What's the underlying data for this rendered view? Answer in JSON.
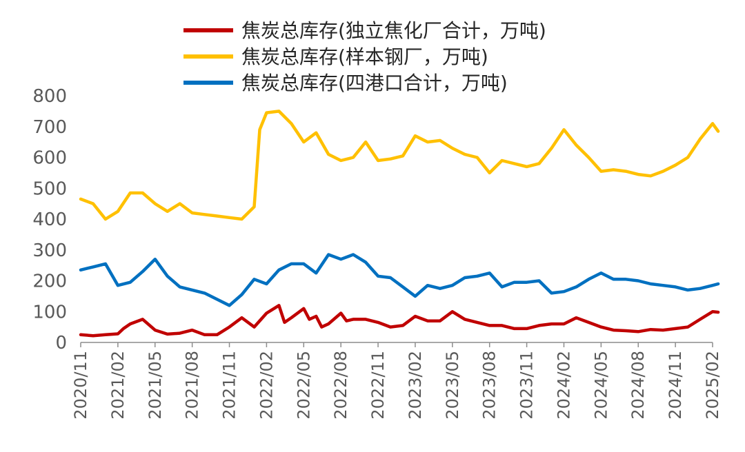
{
  "chart_data": {
    "type": "line",
    "title": "",
    "xlabel": "",
    "ylabel": "",
    "ylim": [
      0,
      800
    ],
    "yticks": [
      0,
      100,
      200,
      300,
      400,
      500,
      600,
      700,
      800
    ],
    "x_tick_labels": [
      "2020/11",
      "2021/02",
      "2021/05",
      "2021/08",
      "2021/11",
      "2022/02",
      "2022/05",
      "2022/08",
      "2022/11",
      "2023/02",
      "2023/05",
      "2023/08",
      "2023/11",
      "2024/02",
      "2024/05",
      "2024/08",
      "2024/11",
      "2025/02"
    ],
    "x_range": [
      "2020/11",
      "2025/02"
    ],
    "grid": false,
    "legend_position": "top",
    "series": [
      {
        "name": "焦炭总库存(独立焦化厂合计，万吨)",
        "color": "#C00000",
        "points": [
          [
            "2020/11",
            25
          ],
          [
            "2020/12",
            22
          ],
          [
            "2021/01",
            25
          ],
          [
            "2021/02",
            28
          ],
          [
            "2021/02",
            45
          ],
          [
            "2021/03",
            60
          ],
          [
            "2021/04",
            75
          ],
          [
            "2021/05",
            40
          ],
          [
            "2021/06",
            27
          ],
          [
            "2021/07",
            30
          ],
          [
            "2021/08",
            40
          ],
          [
            "2021/09",
            25
          ],
          [
            "2021/10",
            25
          ],
          [
            "2021/11",
            50
          ],
          [
            "2021/12",
            80
          ],
          [
            "2022/01",
            50
          ],
          [
            "2022/02",
            95
          ],
          [
            "2022/03",
            120
          ],
          [
            "2022/03",
            65
          ],
          [
            "2022/04",
            80
          ],
          [
            "2022/05",
            110
          ],
          [
            "2022/05",
            75
          ],
          [
            "2022/06",
            85
          ],
          [
            "2022/06",
            50
          ],
          [
            "2022/07",
            60
          ],
          [
            "2022/08",
            95
          ],
          [
            "2022/08",
            70
          ],
          [
            "2022/09",
            75
          ],
          [
            "2022/10",
            75
          ],
          [
            "2022/11",
            65
          ],
          [
            "2022/12",
            50
          ],
          [
            "2023/01",
            55
          ],
          [
            "2023/02",
            85
          ],
          [
            "2023/03",
            70
          ],
          [
            "2023/04",
            70
          ],
          [
            "2023/05",
            100
          ],
          [
            "2023/06",
            75
          ],
          [
            "2023/07",
            65
          ],
          [
            "2023/08",
            55
          ],
          [
            "2023/09",
            55
          ],
          [
            "2023/10",
            45
          ],
          [
            "2023/11",
            45
          ],
          [
            "2023/12",
            55
          ],
          [
            "2024/01",
            60
          ],
          [
            "2024/02",
            60
          ],
          [
            "2024/03",
            80
          ],
          [
            "2024/04",
            65
          ],
          [
            "2024/05",
            50
          ],
          [
            "2024/06",
            40
          ],
          [
            "2024/07",
            38
          ],
          [
            "2024/08",
            35
          ],
          [
            "2024/09",
            42
          ],
          [
            "2024/10",
            40
          ],
          [
            "2024/11",
            45
          ],
          [
            "2024/12",
            50
          ],
          [
            "2025/01",
            75
          ],
          [
            "2025/02",
            100
          ],
          [
            "2025/02",
            98
          ]
        ]
      },
      {
        "name": "焦炭总库存(样本钢厂，万吨)",
        "color": "#FFC000",
        "points": [
          [
            "2020/11",
            465
          ],
          [
            "2020/12",
            450
          ],
          [
            "2021/01",
            400
          ],
          [
            "2021/02",
            425
          ],
          [
            "2021/03",
            485
          ],
          [
            "2021/04",
            485
          ],
          [
            "2021/05",
            450
          ],
          [
            "2021/06",
            425
          ],
          [
            "2021/07",
            450
          ],
          [
            "2021/08",
            420
          ],
          [
            "2021/09",
            415
          ],
          [
            "2021/10",
            410
          ],
          [
            "2021/11",
            405
          ],
          [
            "2021/12",
            400
          ],
          [
            "2022/01",
            440
          ],
          [
            "2022/01",
            690
          ],
          [
            "2022/02",
            745
          ],
          [
            "2022/03",
            750
          ],
          [
            "2022/04",
            710
          ],
          [
            "2022/05",
            650
          ],
          [
            "2022/06",
            680
          ],
          [
            "2022/07",
            610
          ],
          [
            "2022/08",
            590
          ],
          [
            "2022/09",
            600
          ],
          [
            "2022/10",
            650
          ],
          [
            "2022/11",
            590
          ],
          [
            "2022/12",
            595
          ],
          [
            "2023/01",
            605
          ],
          [
            "2023/02",
            670
          ],
          [
            "2023/03",
            650
          ],
          [
            "2023/04",
            655
          ],
          [
            "2023/05",
            630
          ],
          [
            "2023/06",
            610
          ],
          [
            "2023/07",
            600
          ],
          [
            "2023/08",
            550
          ],
          [
            "2023/09",
            590
          ],
          [
            "2023/10",
            580
          ],
          [
            "2023/11",
            570
          ],
          [
            "2023/12",
            580
          ],
          [
            "2024/01",
            630
          ],
          [
            "2024/02",
            690
          ],
          [
            "2024/03",
            640
          ],
          [
            "2024/04",
            600
          ],
          [
            "2024/05",
            555
          ],
          [
            "2024/06",
            560
          ],
          [
            "2024/07",
            555
          ],
          [
            "2024/08",
            545
          ],
          [
            "2024/09",
            540
          ],
          [
            "2024/10",
            555
          ],
          [
            "2024/11",
            575
          ],
          [
            "2024/12",
            600
          ],
          [
            "2025/01",
            660
          ],
          [
            "2025/02",
            710
          ],
          [
            "2025/02",
            685
          ]
        ]
      },
      {
        "name": "焦炭总库存(四港口合计，万吨)",
        "color": "#0070C0",
        "points": [
          [
            "2020/11",
            235
          ],
          [
            "2020/12",
            245
          ],
          [
            "2021/01",
            255
          ],
          [
            "2021/02",
            185
          ],
          [
            "2021/03",
            195
          ],
          [
            "2021/04",
            230
          ],
          [
            "2021/05",
            270
          ],
          [
            "2021/06",
            215
          ],
          [
            "2021/07",
            180
          ],
          [
            "2021/08",
            170
          ],
          [
            "2021/09",
            160
          ],
          [
            "2021/10",
            140
          ],
          [
            "2021/11",
            120
          ],
          [
            "2021/12",
            155
          ],
          [
            "2022/01",
            205
          ],
          [
            "2022/02",
            190
          ],
          [
            "2022/03",
            235
          ],
          [
            "2022/04",
            255
          ],
          [
            "2022/05",
            255
          ],
          [
            "2022/06",
            225
          ],
          [
            "2022/07",
            285
          ],
          [
            "2022/08",
            270
          ],
          [
            "2022/09",
            285
          ],
          [
            "2022/10",
            260
          ],
          [
            "2022/11",
            215
          ],
          [
            "2022/12",
            210
          ],
          [
            "2023/01",
            180
          ],
          [
            "2023/02",
            150
          ],
          [
            "2023/03",
            185
          ],
          [
            "2023/04",
            175
          ],
          [
            "2023/05",
            185
          ],
          [
            "2023/06",
            210
          ],
          [
            "2023/07",
            215
          ],
          [
            "2023/08",
            225
          ],
          [
            "2023/09",
            180
          ],
          [
            "2023/10",
            195
          ],
          [
            "2023/11",
            195
          ],
          [
            "2023/12",
            200
          ],
          [
            "2024/01",
            160
          ],
          [
            "2024/02",
            165
          ],
          [
            "2024/03",
            180
          ],
          [
            "2024/04",
            205
          ],
          [
            "2024/05",
            225
          ],
          [
            "2024/06",
            205
          ],
          [
            "2024/07",
            205
          ],
          [
            "2024/08",
            200
          ],
          [
            "2024/09",
            190
          ],
          [
            "2024/10",
            185
          ],
          [
            "2024/11",
            180
          ],
          [
            "2024/12",
            170
          ],
          [
            "2025/01",
            175
          ],
          [
            "2025/02",
            185
          ],
          [
            "2025/02",
            190
          ]
        ]
      }
    ]
  }
}
